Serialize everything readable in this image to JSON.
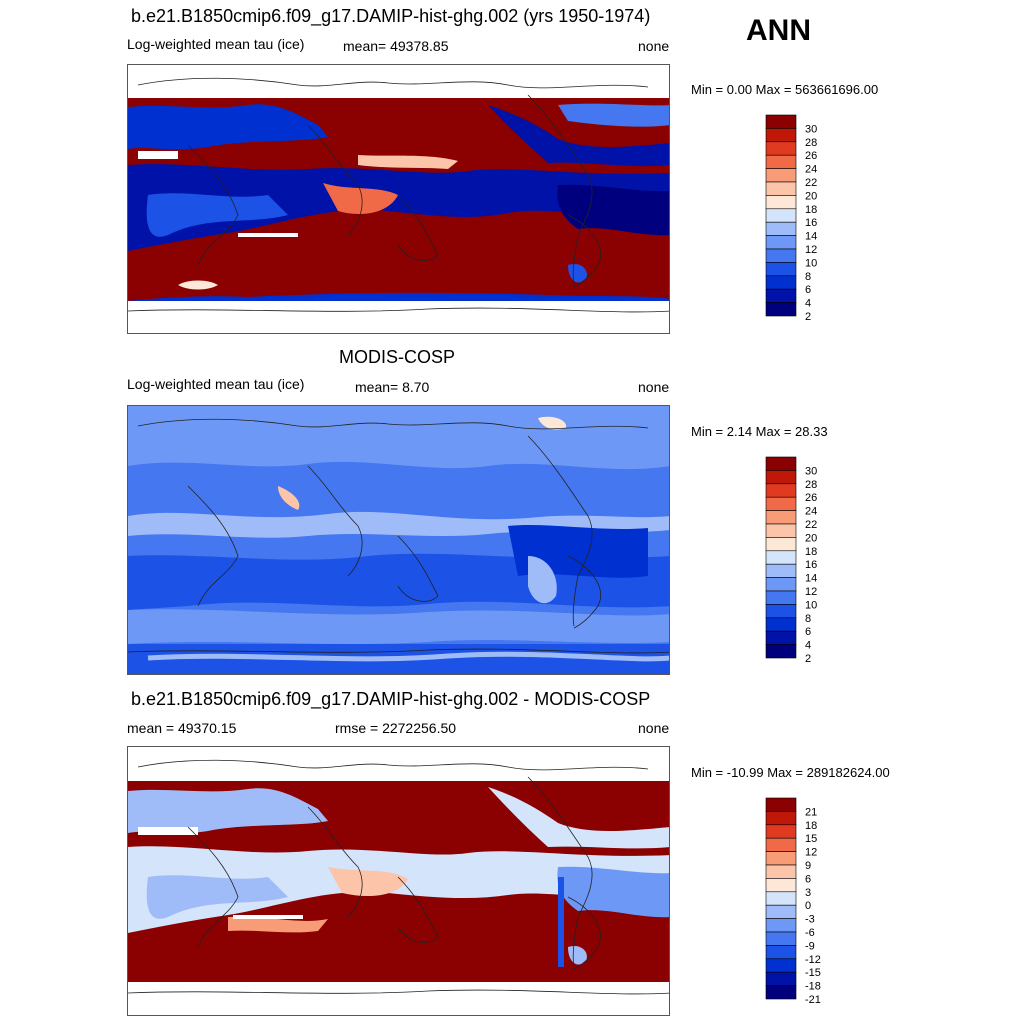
{
  "season": "ANN",
  "panels": [
    {
      "title": "b.e21.B1850cmip6.f09_g17.DAMIP-hist-ghg.002 (yrs 1950-1974)",
      "left_label": "Log-weighted mean tau (ice)",
      "center_label": "mean= 49378.85",
      "right_label": "none",
      "minmax": "Min =   0.00 Max = 563661696.00"
    },
    {
      "title": "MODIS-COSP",
      "left_label": "Log-weighted mean tau (ice)",
      "center_label": "mean=   8.70",
      "right_label": "none",
      "minmax": "Min =   2.14 Max =  28.33"
    },
    {
      "title": "b.e21.B1850cmip6.f09_g17.DAMIP-hist-ghg.002 - MODIS-COSP",
      "left_label": "mean = 49370.15",
      "center_label": "rmse = 2272256.50",
      "right_label": "none",
      "minmax": "Min = -10.99 Max = 289182624.00"
    }
  ],
  "chart_data": [
    {
      "type": "heatmap",
      "title": "b.e21.B1850cmip6.f09_g17.DAMIP-hist-ghg.002 (yrs 1950-1974)",
      "variable": "Log-weighted mean tau (ice)",
      "mean": 49378.85,
      "min": 0.0,
      "max": 563661696.0,
      "units": "none",
      "colorbar_levels": [
        2,
        4,
        6,
        8,
        10,
        12,
        14,
        16,
        18,
        20,
        22,
        24,
        26,
        28,
        30
      ]
    },
    {
      "type": "heatmap",
      "title": "MODIS-COSP",
      "variable": "Log-weighted mean tau (ice)",
      "mean": 8.7,
      "min": 2.14,
      "max": 28.33,
      "units": "none",
      "colorbar_levels": [
        2,
        4,
        6,
        8,
        10,
        12,
        14,
        16,
        18,
        20,
        22,
        24,
        26,
        28,
        30
      ]
    },
    {
      "type": "heatmap",
      "title": "b.e21.B1850cmip6.f09_g17.DAMIP-hist-ghg.002 - MODIS-COSP",
      "mean": 49370.15,
      "rmse": 2272256.5,
      "min": -10.99,
      "max": 289182624.0,
      "units": "none",
      "colorbar_levels": [
        -21,
        -18,
        -15,
        -12,
        -9,
        -6,
        -3,
        0,
        3,
        6,
        9,
        12,
        15,
        18,
        21
      ]
    }
  ],
  "colors": {
    "seq_palette": [
      "#00007f",
      "#0012a8",
      "#0030d0",
      "#1c52e6",
      "#4477f0",
      "#6e98f5",
      "#a0bcf8",
      "#d4e4fb",
      "#fde8d8",
      "#fcc4a8",
      "#f89c78",
      "#f06a48",
      "#e03a20",
      "#c01808",
      "#8b0000"
    ]
  }
}
